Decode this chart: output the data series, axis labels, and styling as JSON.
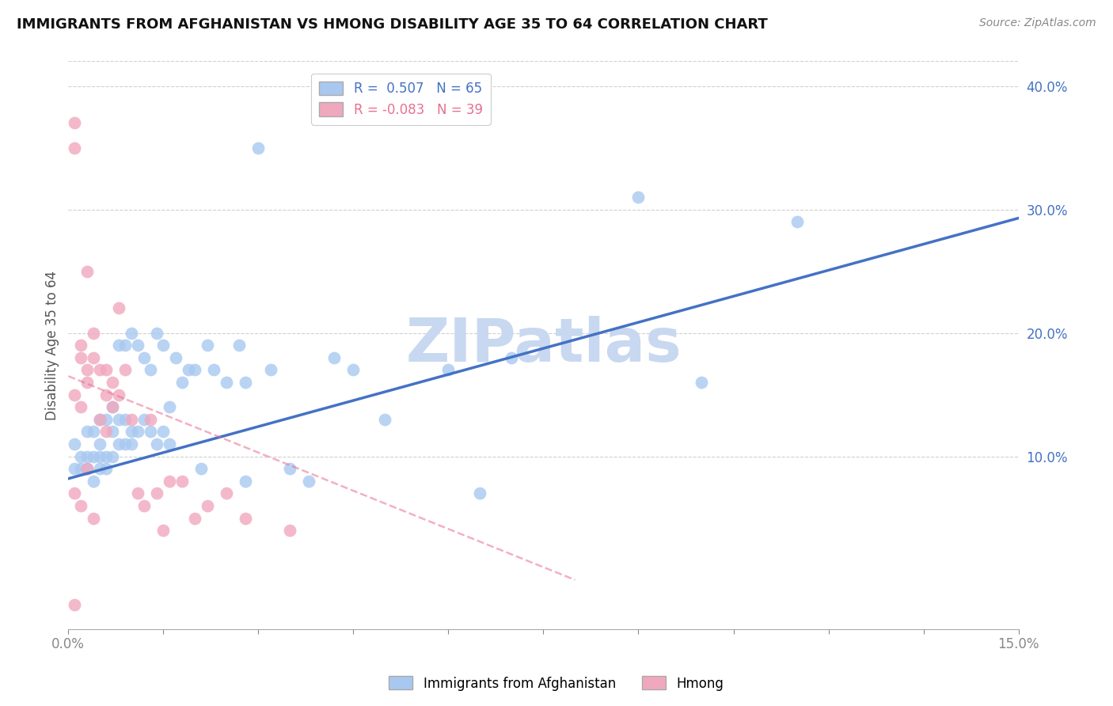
{
  "title": "IMMIGRANTS FROM AFGHANISTAN VS HMONG DISABILITY AGE 35 TO 64 CORRELATION CHART",
  "source": "Source: ZipAtlas.com",
  "ylabel": "Disability Age 35 to 64",
  "xlim": [
    0.0,
    0.15
  ],
  "ylim": [
    -0.04,
    0.42
  ],
  "xticks": [
    0.0,
    0.015,
    0.03,
    0.045,
    0.06,
    0.075,
    0.09,
    0.105,
    0.12,
    0.135,
    0.15
  ],
  "xtick_labels_show": {
    "0.0": "0.0%",
    "0.15": "15.0%"
  },
  "yticks_right": [
    0.1,
    0.2,
    0.3,
    0.4
  ],
  "ytick_labels_right": [
    "10.0%",
    "20.0%",
    "30.0%",
    "40.0%"
  ],
  "grid_color": "#d0d0d0",
  "background_color": "#ffffff",
  "afghanistan_color": "#a8c8f0",
  "hmong_color": "#f0a8be",
  "afghanistan_line_color": "#4472c4",
  "hmong_line_color": "#e87090",
  "watermark_color": "#c8d8f0",
  "legend_afghanistan_label": "Immigrants from Afghanistan",
  "legend_hmong_label": "Hmong",
  "R_afghanistan": 0.507,
  "N_afghanistan": 65,
  "R_hmong": -0.083,
  "N_hmong": 39,
  "af_line_x0": 0.0,
  "af_line_y0": 0.082,
  "af_line_x1": 0.15,
  "af_line_y1": 0.293,
  "hm_line_x0": 0.0,
  "hm_line_y0": 0.165,
  "hm_line_x1": 0.08,
  "hm_line_y1": 0.0,
  "afghanistan_x": [
    0.001,
    0.001,
    0.002,
    0.002,
    0.003,
    0.003,
    0.003,
    0.004,
    0.004,
    0.004,
    0.005,
    0.005,
    0.005,
    0.005,
    0.006,
    0.006,
    0.006,
    0.007,
    0.007,
    0.007,
    0.008,
    0.008,
    0.008,
    0.009,
    0.009,
    0.009,
    0.01,
    0.01,
    0.01,
    0.011,
    0.011,
    0.012,
    0.012,
    0.013,
    0.013,
    0.014,
    0.014,
    0.015,
    0.015,
    0.016,
    0.016,
    0.017,
    0.018,
    0.019,
    0.02,
    0.021,
    0.022,
    0.023,
    0.025,
    0.027,
    0.028,
    0.03,
    0.032,
    0.035,
    0.038,
    0.042,
    0.045,
    0.05,
    0.06,
    0.065,
    0.07,
    0.09,
    0.1,
    0.115,
    0.028
  ],
  "afghanistan_y": [
    0.11,
    0.09,
    0.1,
    0.09,
    0.12,
    0.1,
    0.09,
    0.12,
    0.1,
    0.08,
    0.13,
    0.11,
    0.1,
    0.09,
    0.13,
    0.1,
    0.09,
    0.14,
    0.12,
    0.1,
    0.19,
    0.13,
    0.11,
    0.19,
    0.13,
    0.11,
    0.2,
    0.12,
    0.11,
    0.19,
    0.12,
    0.18,
    0.13,
    0.17,
    0.12,
    0.2,
    0.11,
    0.19,
    0.12,
    0.14,
    0.11,
    0.18,
    0.16,
    0.17,
    0.17,
    0.09,
    0.19,
    0.17,
    0.16,
    0.19,
    0.08,
    0.35,
    0.17,
    0.09,
    0.08,
    0.18,
    0.17,
    0.13,
    0.17,
    0.07,
    0.18,
    0.31,
    0.16,
    0.29,
    0.16
  ],
  "hmong_x": [
    0.001,
    0.001,
    0.001,
    0.001,
    0.002,
    0.002,
    0.002,
    0.002,
    0.003,
    0.003,
    0.003,
    0.003,
    0.004,
    0.004,
    0.004,
    0.005,
    0.005,
    0.006,
    0.006,
    0.006,
    0.007,
    0.007,
    0.008,
    0.008,
    0.009,
    0.01,
    0.011,
    0.012,
    0.013,
    0.014,
    0.015,
    0.016,
    0.018,
    0.02,
    0.022,
    0.025,
    0.028,
    0.035,
    0.001
  ],
  "hmong_y": [
    0.37,
    0.35,
    0.15,
    0.07,
    0.19,
    0.18,
    0.14,
    0.06,
    0.17,
    0.16,
    0.09,
    0.25,
    0.2,
    0.18,
    0.05,
    0.17,
    0.13,
    0.17,
    0.15,
    0.12,
    0.16,
    0.14,
    0.22,
    0.15,
    0.17,
    0.13,
    0.07,
    0.06,
    0.13,
    0.07,
    0.04,
    0.08,
    0.08,
    0.05,
    0.06,
    0.07,
    0.05,
    0.04,
    -0.02
  ]
}
